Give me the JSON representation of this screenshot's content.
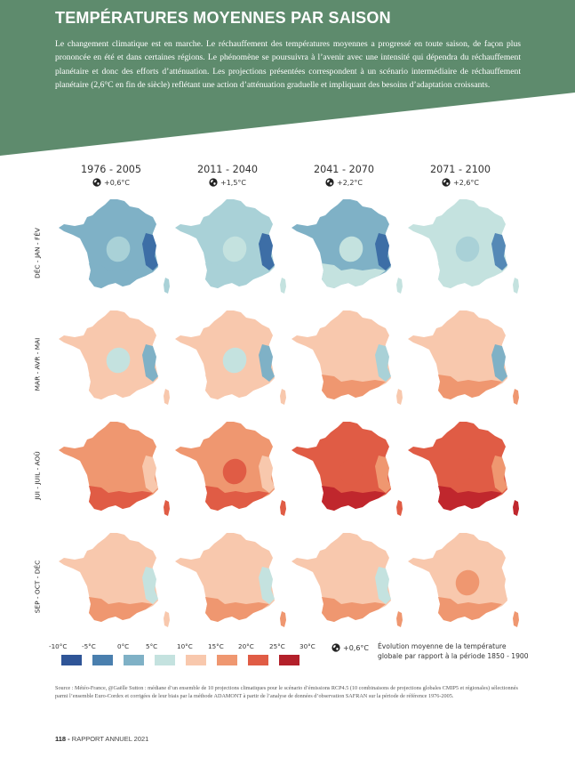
{
  "header": {
    "title": "TEMPÉRATURES MOYENNES PAR SAISON",
    "intro": "Le changement climatique est en marche. Le réchauffement des températures moyennes a progressé en toute saison, de façon plus prononcée en été et dans certaines régions. Le phénomène se poursuivra à l’avenir avec une intensité qui dépendra du réchauffement planétaire et donc des efforts d’atténuation. Les projections présentées correspondent à un scénario intermédiaire de réchauffement planétaire (2,6°C en fin de siècle) reflétant une action d’atténuation graduelle et impliquant des besoins d’adaptation croissants.",
    "banner_color": "#5e8b6d"
  },
  "periods": [
    {
      "label": "1976 - 2005",
      "delta": "+0,6°C"
    },
    {
      "label": "2011 - 2040",
      "delta": "+1,5°C"
    },
    {
      "label": "2041 - 2070",
      "delta": "+2,2°C"
    },
    {
      "label": "2071 - 2100",
      "delta": "+2,6°C"
    }
  ],
  "seasons": [
    {
      "label": "DÉC - JAN - FÉV"
    },
    {
      "label": "MAR - AVR - MAI"
    },
    {
      "label": "JUI - JUIL - AOÛ"
    },
    {
      "label": "SEP - OCT - DÉC"
    }
  ],
  "maps": [
    [
      {
        "base": "#7fb1c6",
        "secondary": "#a9d1d7",
        "warm": "#7fb1c6",
        "alps": "#3d6ea6",
        "corse": "#a9d1d7"
      },
      {
        "base": "#a9d1d7",
        "secondary": "#c4e2df",
        "warm": "#a9d1d7",
        "alps": "#3d6ea6",
        "corse": "#c4e2df"
      },
      {
        "base": "#7fb1c6",
        "secondary": "#c4e2df",
        "warm": "#c4e2df",
        "alps": "#3d6ea6",
        "corse": "#c4e2df"
      },
      {
        "base": "#c4e2df",
        "secondary": "#a9d1d7",
        "warm": "#c4e2df",
        "alps": "#5589b6",
        "corse": "#c4e2df"
      }
    ],
    [
      {
        "base": "#f8c8ad",
        "secondary": "#c4e2df",
        "warm": "#f8c8ad",
        "alps": "#7fb1c6",
        "corse": "#f8c8ad"
      },
      {
        "base": "#f8c8ad",
        "secondary": "#c4e2df",
        "warm": "#f8c8ad",
        "alps": "#7fb1c6",
        "corse": "#f8c8ad"
      },
      {
        "base": "#f8c8ad",
        "secondary": "#f8c8ad",
        "warm": "#ef9770",
        "alps": "#a9d1d7",
        "corse": "#f8c8ad"
      },
      {
        "base": "#f8c8ad",
        "secondary": "#f8c8ad",
        "warm": "#ef9770",
        "alps": "#7fb1c6",
        "corse": "#ef9770"
      }
    ],
    [
      {
        "base": "#ef9770",
        "secondary": "#ef9770",
        "warm": "#e05c45",
        "alps": "#f8c8ad",
        "corse": "#e05c45"
      },
      {
        "base": "#ef9770",
        "secondary": "#e05c45",
        "warm": "#e05c45",
        "alps": "#f8c8ad",
        "corse": "#e05c45"
      },
      {
        "base": "#e05c45",
        "secondary": "#e05c45",
        "warm": "#c0272d",
        "alps": "#ef9770",
        "corse": "#e05c45"
      },
      {
        "base": "#e05c45",
        "secondary": "#e05c45",
        "warm": "#c0272d",
        "alps": "#ef9770",
        "corse": "#c0272d"
      }
    ],
    [
      {
        "base": "#f8c8ad",
        "secondary": "#f8c8ad",
        "warm": "#ef9770",
        "alps": "#c4e2df",
        "corse": "#f8c8ad"
      },
      {
        "base": "#f8c8ad",
        "secondary": "#f8c8ad",
        "warm": "#ef9770",
        "alps": "#c4e2df",
        "corse": "#ef9770"
      },
      {
        "base": "#f8c8ad",
        "secondary": "#f8c8ad",
        "warm": "#ef9770",
        "alps": "#c4e2df",
        "corse": "#ef9770"
      },
      {
        "base": "#f8c8ad",
        "secondary": "#ef9770",
        "warm": "#ef9770",
        "alps": "#f8c8ad",
        "corse": "#ef9770"
      }
    ]
  ],
  "legend": {
    "ticks": [
      "-10°C",
      "-5°C",
      "0°C",
      "5°C",
      "10°C",
      "15°C",
      "20°C",
      "25°C",
      "30°C"
    ],
    "colors": [
      "#2f5597",
      "#4a7fae",
      "#7fb1c6",
      "#c4e2df",
      "#f8c8ad",
      "#ef9770",
      "#e05c45",
      "#b3202a"
    ],
    "note_delta": "+0,6°C",
    "note_line1": "Évolution moyenne de la température",
    "note_line2": "globale par rapport à la période 1850 - 1900"
  },
  "source": "Source : Météo-France, @Gaëlle Sutton : médiane d’un ensemble de 10 projections climatiques pour le scénario d’émissions RCP4.5 (10 combinaisons de projections globales CMIP5 et régionales) sélectionnés parmi l’ensemble Euro-Cordex et corrigées de leur biais par la méthode ADAMONT à partir de l’analyse de données d’observation SAFRAN sur la période de référence 1976-2005.",
  "footer": {
    "page": "118 -",
    "report": "RAPPORT ANNUEL 2021"
  }
}
